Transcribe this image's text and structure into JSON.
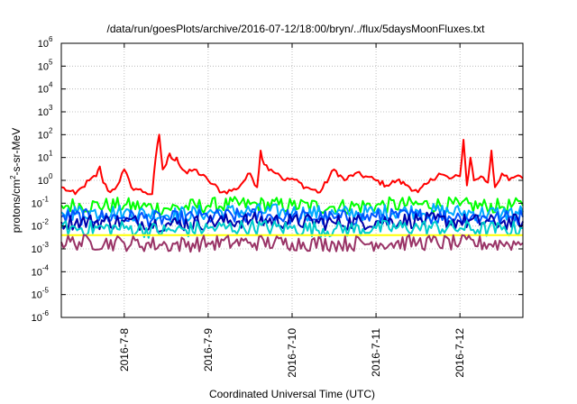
{
  "chart_data": {
    "type": "line",
    "title": "/data/run/goesPlots/archive/2016-07-12/18:00/bryn/../flux/5daysMoonFluxes.txt",
    "xlabel": "Coordinated Universal Time (UTC)",
    "ylabel": {
      "prefix": "protons/cm",
      "sup": "2",
      "suffix": "-s-sr-MeV"
    },
    "yscale": "log",
    "ylim_exponents": [
      -6,
      6
    ],
    "yticks": [
      {
        "base": "10",
        "exp": "6"
      },
      {
        "base": "10",
        "exp": "5"
      },
      {
        "base": "10",
        "exp": "4"
      },
      {
        "base": "10",
        "exp": "3"
      },
      {
        "base": "10",
        "exp": "2"
      },
      {
        "base": "10",
        "exp": "1"
      },
      {
        "base": "10",
        "exp": "0"
      },
      {
        "base": "10",
        "exp": "-1"
      },
      {
        "base": "10",
        "exp": "-2"
      },
      {
        "base": "10",
        "exp": "-3"
      },
      {
        "base": "10",
        "exp": "-4"
      },
      {
        "base": "10",
        "exp": "-5"
      },
      {
        "base": "10",
        "exp": "-6"
      }
    ],
    "xlim": [
      "2016-07-07T06:00",
      "2016-07-12T18:00"
    ],
    "xticks": [
      {
        "label": "2016-7-8",
        "value": "2016-07-08T00:00"
      },
      {
        "label": "2016-7-9",
        "value": "2016-07-09T00:00"
      },
      {
        "label": "2016-7-10",
        "value": "2016-07-10T00:00"
      },
      {
        "label": "2016-7-11",
        "value": "2016-07-11T00:00"
      },
      {
        "label": "2016-7-12",
        "value": "2016-07-12T00:00"
      }
    ],
    "grid": true,
    "series": [
      {
        "color": "#ff0000",
        "x": [
          "2016-07-07T06:00",
          "2016-07-07T08:00",
          "2016-07-07T10:00",
          "2016-07-07T12:00",
          "2016-07-07T14:00",
          "2016-07-07T16:00",
          "2016-07-07T17:00",
          "2016-07-07T18:00",
          "2016-07-07T20:00",
          "2016-07-07T22:00",
          "2016-07-08T00:00",
          "2016-07-08T02:00",
          "2016-07-08T04:00",
          "2016-07-08T06:00",
          "2016-07-08T08:00",
          "2016-07-08T09:00",
          "2016-07-08T10:00",
          "2016-07-08T11:00",
          "2016-07-08T12:00",
          "2016-07-08T13:00",
          "2016-07-08T14:00",
          "2016-07-08T15:00",
          "2016-07-08T16:00",
          "2016-07-08T18:00",
          "2016-07-08T20:00",
          "2016-07-09T00:00",
          "2016-07-09T04:00",
          "2016-07-09T08:00",
          "2016-07-09T12:00",
          "2016-07-09T14:00",
          "2016-07-09T15:00",
          "2016-07-09T16:00",
          "2016-07-09T18:00",
          "2016-07-09T20:00",
          "2016-07-09T22:00",
          "2016-07-10T00:00",
          "2016-07-10T04:00",
          "2016-07-10T08:00",
          "2016-07-10T12:00",
          "2016-07-10T15:00",
          "2016-07-10T18:00",
          "2016-07-10T21:00",
          "2016-07-11T00:00",
          "2016-07-11T03:00",
          "2016-07-11T06:00",
          "2016-07-11T09:00",
          "2016-07-11T12:00",
          "2016-07-11T15:00",
          "2016-07-11T18:00",
          "2016-07-11T21:00",
          "2016-07-12T00:00",
          "2016-07-12T01:00",
          "2016-07-12T02:00",
          "2016-07-12T03:00",
          "2016-07-12T04:00",
          "2016-07-12T06:00",
          "2016-07-12T08:00",
          "2016-07-12T09:00",
          "2016-07-12T10:00",
          "2016-07-12T12:00",
          "2016-07-12T14:00",
          "2016-07-12T16:00",
          "2016-07-12T18:00"
        ],
        "y": [
          0.5,
          0.35,
          0.25,
          0.5,
          1.0,
          1.5,
          4.0,
          0.8,
          0.3,
          0.6,
          3.0,
          0.5,
          0.4,
          0.3,
          0.25,
          10.0,
          100.0,
          3.0,
          5.0,
          15.0,
          8.0,
          10.0,
          4.0,
          2.0,
          3.0,
          1.0,
          0.3,
          0.4,
          2.0,
          0.5,
          20.0,
          5.0,
          3.0,
          2.0,
          1.0,
          1.2,
          0.5,
          0.3,
          3.0,
          1.0,
          2.0,
          1.5,
          1.0,
          0.6,
          1.0,
          0.6,
          0.3,
          0.8,
          2.0,
          1.2,
          1.5,
          60.0,
          0.6,
          10.0,
          1.0,
          1.5,
          0.8,
          20.0,
          0.5,
          2.0,
          1.0,
          1.5,
          1.2
        ]
      },
      {
        "color": "#00ff00",
        "x": [
          "2016-07-07T06:00",
          "2016-07-08T00:00",
          "2016-07-08T12:00",
          "2016-07-09T00:00",
          "2016-07-09T12:00",
          "2016-07-10T00:00",
          "2016-07-10T12:00",
          "2016-07-11T00:00",
          "2016-07-11T12:00",
          "2016-07-12T00:00",
          "2016-07-12T12:00",
          "2016-07-12T18:00"
        ],
        "y": [
          0.08,
          0.08,
          0.06,
          0.08,
          0.09,
          0.08,
          0.07,
          0.08,
          0.09,
          0.08,
          0.07,
          0.08
        ]
      },
      {
        "color": "#00aaff",
        "x": [
          "2016-07-07T06:00",
          "2016-07-08T00:00",
          "2016-07-08T12:00",
          "2016-07-09T00:00",
          "2016-07-09T12:00",
          "2016-07-10T00:00",
          "2016-07-10T12:00",
          "2016-07-11T00:00",
          "2016-07-11T12:00",
          "2016-07-12T00:00",
          "2016-07-12T12:00",
          "2016-07-12T18:00"
        ],
        "y": [
          0.04,
          0.04,
          0.03,
          0.04,
          0.045,
          0.04,
          0.035,
          0.04,
          0.045,
          0.04,
          0.035,
          0.04
        ]
      },
      {
        "color": "#0055ff",
        "x": [
          "2016-07-07T06:00",
          "2016-07-08T00:00",
          "2016-07-08T12:00",
          "2016-07-09T00:00",
          "2016-07-09T12:00",
          "2016-07-10T00:00",
          "2016-07-10T12:00",
          "2016-07-11T00:00",
          "2016-07-11T12:00",
          "2016-07-12T00:00",
          "2016-07-12T12:00",
          "2016-07-12T18:00"
        ],
        "y": [
          0.025,
          0.025,
          0.02,
          0.025,
          0.028,
          0.025,
          0.022,
          0.025,
          0.028,
          0.025,
          0.022,
          0.025
        ]
      },
      {
        "color": "#0000aa",
        "x": [
          "2016-07-07T06:00",
          "2016-07-08T00:00",
          "2016-07-08T12:00",
          "2016-07-09T00:00",
          "2016-07-09T12:00",
          "2016-07-10T00:00",
          "2016-07-10T12:00",
          "2016-07-11T00:00",
          "2016-07-11T12:00",
          "2016-07-12T00:00",
          "2016-07-12T12:00",
          "2016-07-12T18:00"
        ],
        "y": [
          0.015,
          0.016,
          0.012,
          0.015,
          0.018,
          0.016,
          0.014,
          0.016,
          0.018,
          0.016,
          0.014,
          0.016
        ]
      },
      {
        "color": "#00cccc",
        "x": [
          "2016-07-07T06:00",
          "2016-07-08T00:00",
          "2016-07-08T12:00",
          "2016-07-09T00:00",
          "2016-07-09T12:00",
          "2016-07-10T00:00",
          "2016-07-10T12:00",
          "2016-07-11T00:00",
          "2016-07-11T12:00",
          "2016-07-12T00:00",
          "2016-07-12T12:00",
          "2016-07-12T18:00"
        ],
        "y": [
          0.008,
          0.008,
          0.006,
          0.008,
          0.009,
          0.008,
          0.007,
          0.008,
          0.009,
          0.008,
          0.007,
          0.008
        ]
      },
      {
        "color": "#ffff00",
        "x": [
          "2016-07-07T06:00",
          "2016-07-12T18:00"
        ],
        "y": [
          0.004,
          0.004
        ]
      },
      {
        "color": "#993366",
        "x": [
          "2016-07-07T06:00",
          "2016-07-08T00:00",
          "2016-07-08T12:00",
          "2016-07-09T00:00",
          "2016-07-09T12:00",
          "2016-07-10T00:00",
          "2016-07-10T12:00",
          "2016-07-11T00:00",
          "2016-07-11T12:00",
          "2016-07-12T00:00",
          "2016-07-12T12:00",
          "2016-07-12T18:00"
        ],
        "y": [
          0.002,
          0.0018,
          0.0015,
          0.0018,
          0.0019,
          0.0018,
          0.0017,
          0.0018,
          0.0019,
          0.0018,
          0.0017,
          0.0018
        ]
      }
    ]
  }
}
